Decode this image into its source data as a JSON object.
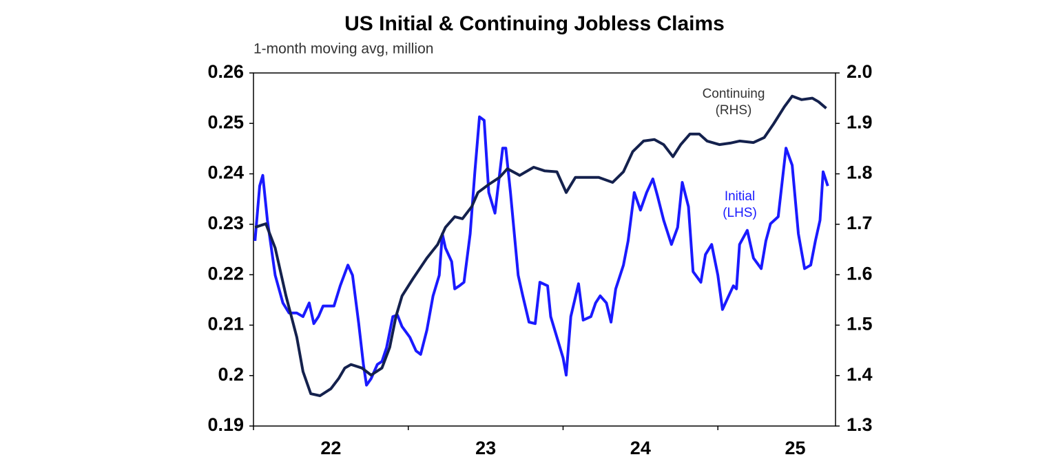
{
  "chart_data": {
    "type": "line",
    "title": "US Initial & Continuing Jobless Claims",
    "subtitle": "1-month moving avg, million",
    "xlim": [
      22,
      25.76
    ],
    "xticks": [
      {
        "value": 22,
        "label": "22"
      },
      {
        "value": 23,
        "label": "23"
      },
      {
        "value": 24,
        "label": "24"
      },
      {
        "value": 25,
        "label": "25"
      }
    ],
    "ylim": [
      0.19,
      0.26
    ],
    "yticks": [
      0.19,
      0.2,
      0.21,
      0.22,
      0.23,
      0.24,
      0.25,
      0.26
    ],
    "y2lim": [
      1.3,
      2.0
    ],
    "y2ticks": [
      1.3,
      1.4,
      1.5,
      1.6,
      1.7,
      1.8,
      1.9,
      {
        "value": 2.0,
        "label": "2.0"
      }
    ],
    "series": [
      {
        "label": [
          "Initial",
          "(LHS)"
        ],
        "color": "#1a1aff",
        "axis": "y",
        "x": [
          22.01,
          22.04,
          22.06,
          22.09,
          22.14,
          22.19,
          22.23,
          22.28,
          22.32,
          22.36,
          22.39,
          22.42,
          22.45,
          22.52,
          22.56,
          22.61,
          22.64,
          22.68,
          22.71,
          22.73,
          22.76,
          22.8,
          22.83,
          22.86,
          22.9,
          22.93,
          22.96,
          23.01,
          23.05,
          23.08,
          23.12,
          23.16,
          23.2,
          23.22,
          23.24,
          23.28,
          23.3,
          23.33,
          23.36,
          23.4,
          23.43,
          23.46,
          23.49,
          23.52,
          23.56,
          23.61,
          23.63,
          23.66,
          23.71,
          23.74,
          23.78,
          23.82,
          23.85,
          23.9,
          23.92,
          23.96,
          24.0,
          24.02,
          24.05,
          24.1,
          24.13,
          24.18,
          24.21,
          24.24,
          24.28,
          24.31,
          24.34,
          24.39,
          24.42,
          24.46,
          24.5,
          24.54,
          24.58,
          24.61,
          24.65,
          24.7,
          24.74,
          24.77,
          24.81,
          24.84,
          24.89,
          24.92,
          24.96,
          25.0,
          25.03,
          25.07,
          25.1,
          25.12,
          25.14,
          25.19,
          25.23,
          25.28,
          25.31,
          25.34,
          25.39,
          25.44,
          25.48,
          25.52,
          25.56,
          25.6,
          25.63,
          25.66,
          25.68,
          25.71
        ],
        "values": [
          0.2267,
          0.2376,
          0.2397,
          0.2308,
          0.2199,
          0.2144,
          0.2124,
          0.2124,
          0.2117,
          0.2144,
          0.2103,
          0.2117,
          0.2138,
          0.2138,
          0.2178,
          0.2219,
          0.2199,
          0.2103,
          0.2022,
          0.1981,
          0.1994,
          0.2022,
          0.2028,
          0.2056,
          0.2117,
          0.212,
          0.2097,
          0.2076,
          0.2049,
          0.2042,
          0.209,
          0.2158,
          0.2199,
          0.2281,
          0.2253,
          0.2226,
          0.2172,
          0.2178,
          0.2185,
          0.2281,
          0.2404,
          0.2513,
          0.2506,
          0.2363,
          0.2322,
          0.2451,
          0.2451,
          0.2363,
          0.2199,
          0.2158,
          0.2106,
          0.2103,
          0.2185,
          0.2178,
          0.2117,
          0.2076,
          0.2035,
          0.2001,
          0.2117,
          0.2182,
          0.211,
          0.2117,
          0.2144,
          0.2158,
          0.2144,
          0.2106,
          0.2172,
          0.2219,
          0.2267,
          0.2363,
          0.2328,
          0.2363,
          0.239,
          0.2356,
          0.2308,
          0.226,
          0.2294,
          0.2383,
          0.2335,
          0.2206,
          0.2185,
          0.224,
          0.226,
          0.2199,
          0.2131,
          0.2158,
          0.2178,
          0.2172,
          0.226,
          0.2288,
          0.2233,
          0.2212,
          0.2267,
          0.2301,
          0.2315,
          0.2451,
          0.2417,
          0.2281,
          0.2212,
          0.2219,
          0.2267,
          0.2308,
          0.2404,
          0.2376
        ]
      },
      {
        "label": [
          "Continuing",
          "(RHS)"
        ],
        "color": "#14214d",
        "axis": "y2",
        "x": [
          22.01,
          22.08,
          22.14,
          22.21,
          22.28,
          22.32,
          22.37,
          22.43,
          22.5,
          22.55,
          22.59,
          22.63,
          22.7,
          22.76,
          22.83,
          22.88,
          22.92,
          22.96,
          23.03,
          23.12,
          23.19,
          23.24,
          23.3,
          23.35,
          23.41,
          23.45,
          23.52,
          23.59,
          23.64,
          23.72,
          23.81,
          23.88,
          23.96,
          24.02,
          24.08,
          24.14,
          24.23,
          24.32,
          24.39,
          24.45,
          24.52,
          24.59,
          24.65,
          24.71,
          24.76,
          24.82,
          24.88,
          24.93,
          25.01,
          25.08,
          25.14,
          25.23,
          25.3,
          25.36,
          25.43,
          25.48,
          25.54,
          25.61,
          25.65,
          25.7
        ],
        "values": [
          1.694,
          1.701,
          1.653,
          1.558,
          1.476,
          1.408,
          1.364,
          1.36,
          1.374,
          1.394,
          1.415,
          1.422,
          1.415,
          1.401,
          1.415,
          1.456,
          1.517,
          1.558,
          1.592,
          1.633,
          1.66,
          1.694,
          1.715,
          1.711,
          1.735,
          1.763,
          1.779,
          1.793,
          1.81,
          1.797,
          1.813,
          1.806,
          1.804,
          1.763,
          1.793,
          1.793,
          1.793,
          1.783,
          1.804,
          1.844,
          1.865,
          1.868,
          1.858,
          1.834,
          1.858,
          1.879,
          1.879,
          1.865,
          1.858,
          1.861,
          1.865,
          1.862,
          1.872,
          1.899,
          1.933,
          1.954,
          1.947,
          1.95,
          1.943,
          1.93
        ]
      }
    ]
  }
}
